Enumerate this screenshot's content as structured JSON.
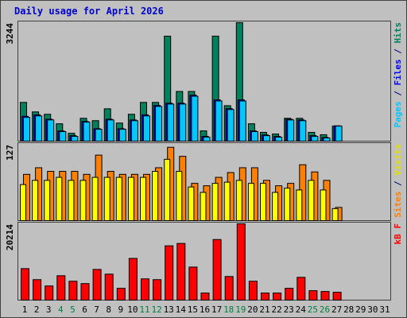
{
  "title": "Daily usage for April 2026",
  "legend_separator": " / ",
  "chart_data": [
    {
      "type": "bar",
      "ylim": [
        0,
        3244
      ],
      "yticks": [
        3244
      ],
      "series": [
        {
          "name": "Pages",
          "color": "#00c8ff",
          "values": [
            650,
            690,
            580,
            260,
            130,
            520,
            325,
            580,
            325,
            560,
            690,
            950,
            1015,
            1015,
            1230,
            110,
            1100,
            865,
            1100,
            260,
            150,
            110,
            580,
            560,
            130,
            85,
            410,
            null,
            null,
            null,
            null
          ]
        },
        {
          "name": "Files",
          "color": "#0000ff",
          "values": [
            680,
            720,
            600,
            280,
            150,
            540,
            340,
            600,
            340,
            580,
            720,
            980,
            1040,
            1040,
            1260,
            130,
            1130,
            890,
            1130,
            280,
            170,
            130,
            600,
            580,
            150,
            100,
            420,
            null,
            null,
            null,
            null
          ]
        },
        {
          "name": "Hits",
          "color": "#00805c",
          "values": [
            1060,
            800,
            735,
            475,
            215,
            625,
            560,
            885,
            495,
            735,
            1060,
            1060,
            2875,
            1360,
            1360,
            280,
            2875,
            970,
            3244,
            475,
            240,
            195,
            625,
            625,
            240,
            175,
            410,
            null,
            null,
            null,
            null
          ]
        }
      ]
    },
    {
      "type": "bar",
      "ylim": [
        0,
        127
      ],
      "yticks": [
        127
      ],
      "series": [
        {
          "name": "Sites",
          "color": "#ff8000",
          "values": [
            77,
            88,
            82,
            82,
            82,
            77,
            109,
            82,
            77,
            77,
            77,
            88,
            122,
            107,
            62,
            58,
            72,
            80,
            88,
            88,
            67,
            58,
            62,
            93,
            81,
            67,
            22,
            null,
            null,
            null,
            null
          ]
        },
        {
          "name": "Visits",
          "color": "#ffff00",
          "values": [
            60,
            67,
            67,
            72,
            67,
            67,
            72,
            72,
            72,
            72,
            72,
            82,
            102,
            82,
            56,
            47,
            62,
            64,
            67,
            62,
            62,
            47,
            54,
            51,
            67,
            51,
            20,
            null,
            null,
            null,
            null
          ]
        }
      ]
    },
    {
      "type": "bar",
      "ylim": [
        0,
        20214
      ],
      "yticks": [
        20214
      ],
      "categories": [
        "1",
        "2",
        "3",
        "4",
        "5",
        "6",
        "7",
        "8",
        "9",
        "10",
        "11",
        "12",
        "13",
        "14",
        "15",
        "16",
        "17",
        "18",
        "19",
        "20",
        "21",
        "22",
        "23",
        "24",
        "25",
        "26",
        "27",
        "28",
        "29",
        "30",
        "31"
      ],
      "category_color": "#000000",
      "weekend_color": "#008040",
      "weekends": [
        3,
        4,
        10,
        11,
        17,
        18,
        24,
        25
      ],
      "series": [
        {
          "name": "kB F",
          "color": "#ff0000",
          "values": [
            8340,
            5420,
            3750,
            6460,
            5000,
            4380,
            8130,
            6880,
            3130,
            11050,
            5630,
            5420,
            14380,
            15010,
            8750,
            1880,
            16050,
            6250,
            20214,
            5000,
            1880,
            1880,
            3130,
            6040,
            2500,
            2290,
            2080,
            null,
            null,
            null,
            null
          ]
        }
      ]
    }
  ]
}
